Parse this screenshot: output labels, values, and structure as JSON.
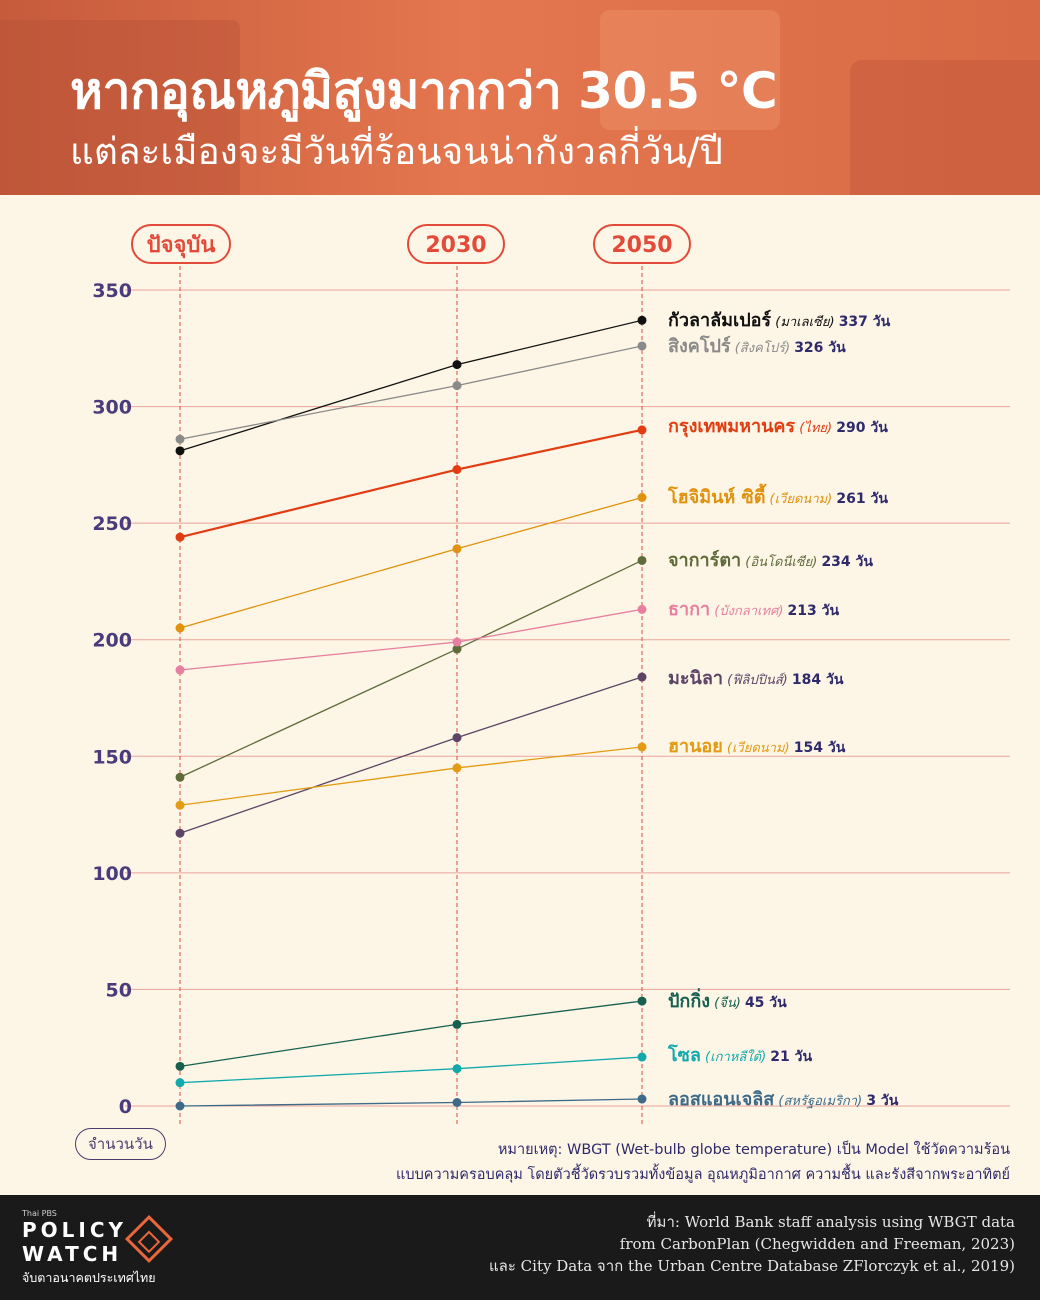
{
  "header": {
    "title": "หากอุณหภูมิสูงมากกว่า 30.5 °C",
    "subtitle": "แต่ละเมืองจะมีวันที่ร้อนจนน่ากังวลกี่วัน/ปี"
  },
  "periods": [
    "ปัจจุบัน",
    "2030",
    "2050"
  ],
  "unit_label": "จำนวนวัน",
  "note": {
    "line1": "หมายเหตุ: WBGT (Wet-bulb globe temperature)  เป็น Model ใช้วัดความร้อน",
    "line2": "แบบความครอบคลุม โดยตัวชี้วัดรวบรวมทั้งข้อมูล อุณหภูมิอากาศ ความชื้น และรังสีจากพระอาทิตย์"
  },
  "footer": {
    "brand_small": "Thai PBS",
    "brand_line1": "POLICY",
    "brand_line2": "WATCH",
    "tagline": "จับตาอนาคตประเทศไทย",
    "source_line1": "ที่มา: World Bank staff analysis using WBGT data",
    "source_line2": "from CarbonPlan (Chegwidden and Freeman, 2023)",
    "source_line3": "และ City Data จาก the Urban Centre Database ZFlorczyk et al., 2019)"
  },
  "chart_data": {
    "type": "line",
    "categories": [
      "ปัจจุบัน",
      "2030",
      "2050"
    ],
    "ylim": [
      0,
      350
    ],
    "yticks": [
      0,
      50,
      100,
      150,
      200,
      250,
      300,
      350
    ],
    "grid": true,
    "series": [
      {
        "name": "กัวลาลัมเปอร์",
        "country": "(มาเลเซีย)",
        "end_label": "337 วัน",
        "values": [
          281,
          318,
          337
        ],
        "color": "#111111"
      },
      {
        "name": "สิงคโปร์",
        "country": "(สิงคโปร์)",
        "end_label": "326 วัน",
        "values": [
          286,
          309,
          326
        ],
        "color": "#8a8a8a"
      },
      {
        "name": "กรุงเทพมหานคร",
        "country": "(ไทย)",
        "end_label": "290 วัน",
        "values": [
          244,
          273,
          290
        ],
        "color": "#e23c12"
      },
      {
        "name": "โฮจิมินห์ ซิตี้",
        "country": "(เวียดนาม)",
        "end_label": "261 วัน",
        "values": [
          205,
          239,
          261
        ],
        "color": "#e0920e"
      },
      {
        "name": "จาการ์ตา",
        "country": "(อินโดนีเซีย)",
        "end_label": "234 วัน",
        "values": [
          141,
          196,
          234
        ],
        "color": "#5f6b3b"
      },
      {
        "name": "ธากา",
        "country": "(บังกลาเทศ)",
        "end_label": "213 วัน",
        "values": [
          187,
          199,
          213
        ],
        "color": "#e87fa0"
      },
      {
        "name": "มะนิลา",
        "country": "(ฟิลิปปินส์)",
        "end_label": "184 วัน",
        "values": [
          117,
          158,
          184
        ],
        "color": "#5d4466"
      },
      {
        "name": "ฮานอย",
        "country": "(เวียดนาม)",
        "end_label": "154 วัน",
        "values": [
          129,
          145,
          154
        ],
        "color": "#e49a12"
      },
      {
        "name": "ปักกิ่ง",
        "country": "(จีน)",
        "end_label": "45 วัน",
        "values": [
          17,
          35,
          45
        ],
        "color": "#17604f"
      },
      {
        "name": "โซล",
        "country": "(เกาหลีใต้)",
        "end_label": "21 วัน",
        "values": [
          10,
          16,
          21
        ],
        "color": "#12a9ad"
      },
      {
        "name": "ลอสแอนเจลิส",
        "country": "(สหรัฐอเมริกา)",
        "end_label": "3 วัน",
        "values": [
          0,
          1.5,
          3
        ],
        "color": "#3e6a8a"
      }
    ]
  }
}
